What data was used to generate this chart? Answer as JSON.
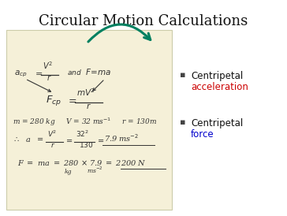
{
  "title": "Circular Motion Calculations",
  "title_fontsize": 13,
  "background_color": "#ffffff",
  "notepad_color": "#f5f0d8",
  "notepad_border": "#ccccaa",
  "bullet_items": [
    {
      "text1": "Centripetal",
      "text2": "acceleration",
      "color2": "#cc0000"
    },
    {
      "text1": "Centripetal",
      "text2": "force",
      "color2": "#0000cc"
    }
  ],
  "arrow_color": "#008060",
  "text_color": "#333333"
}
